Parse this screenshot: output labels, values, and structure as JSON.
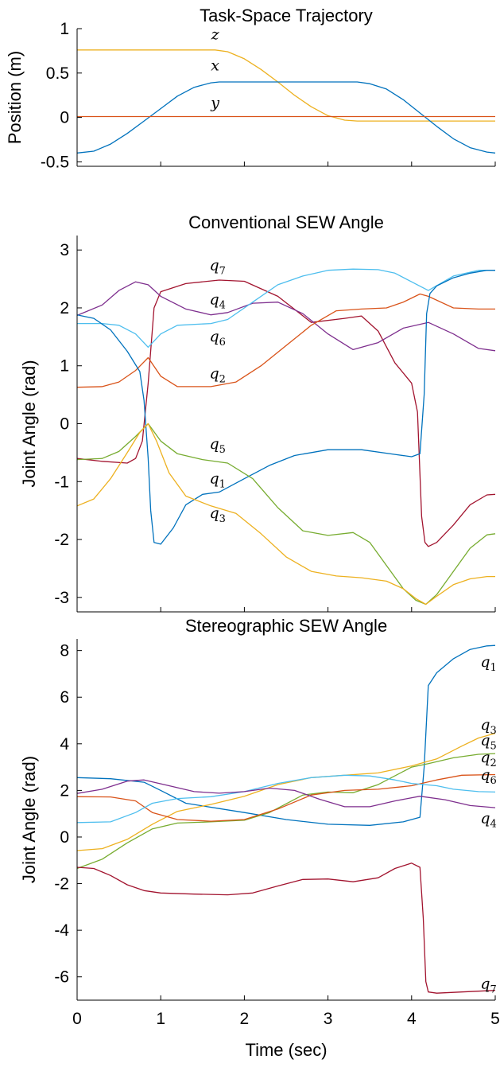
{
  "colors": {
    "c1": "#0072BD",
    "c2": "#D95319",
    "c3": "#EDB120",
    "c4": "#7E2F8E",
    "c5": "#77AC30",
    "c6": "#4DBEEE",
    "c7": "#A2142F"
  },
  "chart_data": [
    {
      "type": "line",
      "title": "Task-Space Trajectory",
      "xlabel": "",
      "ylabel": "Position (m)",
      "xlim": [
        0,
        5
      ],
      "ylim": [
        -0.55,
        1.0
      ],
      "yticks": [
        1,
        0.5,
        0,
        -0.5
      ],
      "ytick_labels": [
        "1",
        "0.5",
        "0",
        "-0.5"
      ],
      "series": [
        {
          "name": "z",
          "color_key": "c3",
          "x": [
            0,
            1.65,
            1.8,
            2.0,
            2.2,
            2.4,
            2.6,
            2.8,
            3.0,
            3.2,
            3.35,
            5
          ],
          "y": [
            0.76,
            0.76,
            0.74,
            0.66,
            0.54,
            0.4,
            0.25,
            0.12,
            0.02,
            -0.03,
            -0.04,
            -0.04
          ]
        },
        {
          "name": "x",
          "color_key": "c1",
          "x": [
            0,
            0.2,
            0.4,
            0.6,
            0.8,
            1.0,
            1.2,
            1.4,
            1.6,
            1.7,
            3.35,
            3.5,
            3.7,
            3.9,
            4.1,
            4.3,
            4.5,
            4.7,
            4.9,
            5
          ],
          "y": [
            -0.4,
            -0.38,
            -0.3,
            -0.18,
            -0.04,
            0.1,
            0.24,
            0.34,
            0.39,
            0.4,
            0.4,
            0.38,
            0.32,
            0.2,
            0.05,
            -0.1,
            -0.24,
            -0.34,
            -0.39,
            -0.4
          ]
        },
        {
          "name": "y",
          "color_key": "c2",
          "x": [
            0,
            5
          ],
          "y": [
            0.01,
            0.01
          ]
        }
      ],
      "annotations": [
        {
          "text": "z",
          "sub": "",
          "x": 1.65,
          "y": 0.88
        },
        {
          "text": "x",
          "sub": "",
          "x": 1.65,
          "y": 0.53
        },
        {
          "text": "y",
          "sub": "",
          "x": 1.65,
          "y": 0.11
        }
      ]
    },
    {
      "type": "line",
      "title": "Conventional SEW Angle",
      "xlabel": "",
      "ylabel": "Joint Angle (rad)",
      "xlim": [
        0,
        5
      ],
      "ylim": [
        -3.25,
        3.25
      ],
      "yticks": [
        3,
        2,
        1,
        0,
        -1,
        -2,
        -3
      ],
      "ytick_labels": [
        "3",
        "2",
        "1",
        "0",
        "-1",
        "-2",
        "-3"
      ],
      "series": [
        {
          "name": "q_7",
          "color_key": "c7",
          "x": [
            0,
            0.3,
            0.6,
            0.7,
            0.78,
            0.85,
            0.92,
            1.0,
            1.3,
            1.7,
            2.0,
            2.4,
            2.8,
            3.2,
            3.4,
            3.6,
            3.8,
            4.0,
            4.07,
            4.12,
            4.16,
            4.2,
            4.3,
            4.5,
            4.7,
            4.9,
            5
          ],
          "y": [
            -0.6,
            -0.65,
            -0.68,
            -0.6,
            -0.3,
            0.7,
            2.0,
            2.28,
            2.42,
            2.48,
            2.46,
            2.2,
            1.75,
            1.82,
            1.86,
            1.6,
            1.05,
            0.7,
            0.2,
            -1.6,
            -2.05,
            -2.12,
            -2.05,
            -1.75,
            -1.4,
            -1.23,
            -1.22
          ]
        },
        {
          "name": "q_4",
          "color_key": "c4",
          "x": [
            0,
            0.3,
            0.5,
            0.7,
            0.85,
            1.0,
            1.3,
            1.6,
            1.8,
            2.1,
            2.4,
            2.7,
            3.0,
            3.3,
            3.6,
            3.9,
            4.2,
            4.5,
            4.8,
            5
          ],
          "y": [
            1.87,
            2.05,
            2.3,
            2.45,
            2.4,
            2.2,
            1.98,
            1.88,
            1.92,
            2.08,
            2.1,
            1.9,
            1.55,
            1.28,
            1.4,
            1.65,
            1.75,
            1.55,
            1.3,
            1.26
          ]
        },
        {
          "name": "q_6",
          "color_key": "c6",
          "x": [
            0,
            0.3,
            0.5,
            0.7,
            0.85,
            1.0,
            1.2,
            1.6,
            1.8,
            2.1,
            2.4,
            2.7,
            3.0,
            3.3,
            3.6,
            3.8,
            4.0,
            4.2,
            4.5,
            4.8,
            5
          ],
          "y": [
            1.73,
            1.73,
            1.7,
            1.55,
            1.32,
            1.55,
            1.7,
            1.73,
            1.8,
            2.1,
            2.4,
            2.55,
            2.65,
            2.67,
            2.66,
            2.6,
            2.45,
            2.3,
            2.55,
            2.65,
            2.65
          ]
        },
        {
          "name": "q_2",
          "color_key": "c2",
          "x": [
            0,
            0.3,
            0.5,
            0.7,
            0.85,
            1.0,
            1.2,
            1.6,
            1.9,
            2.2,
            2.5,
            2.8,
            3.1,
            3.4,
            3.7,
            3.9,
            4.1,
            4.2,
            4.5,
            4.8,
            5
          ],
          "y": [
            0.63,
            0.64,
            0.72,
            0.92,
            1.14,
            0.82,
            0.64,
            0.64,
            0.72,
            1.0,
            1.35,
            1.7,
            1.95,
            1.98,
            2.0,
            2.1,
            2.24,
            2.2,
            2.0,
            1.98,
            1.98
          ]
        },
        {
          "name": "q_1",
          "color_key": "c1",
          "x": [
            0,
            0.2,
            0.4,
            0.6,
            0.75,
            0.8,
            0.85,
            0.88,
            0.92,
            1.0,
            1.15,
            1.3,
            1.5,
            1.7,
            2.0,
            2.3,
            2.6,
            3.0,
            3.4,
            3.8,
            4.0,
            4.1,
            4.15,
            4.18,
            4.22,
            4.3,
            4.5,
            4.7,
            4.9,
            5
          ],
          "y": [
            1.88,
            1.82,
            1.62,
            1.25,
            0.9,
            0.4,
            -0.6,
            -1.5,
            -2.05,
            -2.08,
            -1.8,
            -1.4,
            -1.22,
            -1.18,
            -0.95,
            -0.72,
            -0.55,
            -0.45,
            -0.45,
            -0.53,
            -0.57,
            -0.52,
            0.5,
            1.9,
            2.25,
            2.38,
            2.52,
            2.6,
            2.65,
            2.65
          ]
        },
        {
          "name": "q_5",
          "color_key": "c5",
          "x": [
            0,
            0.3,
            0.5,
            0.7,
            0.85,
            1.0,
            1.2,
            1.5,
            1.8,
            2.1,
            2.4,
            2.7,
            3.0,
            3.3,
            3.5,
            3.7,
            3.9,
            4.05,
            4.17,
            4.3,
            4.5,
            4.7,
            4.9,
            5
          ],
          "y": [
            -0.62,
            -0.6,
            -0.48,
            -0.22,
            0.0,
            -0.3,
            -0.52,
            -0.62,
            -0.68,
            -0.95,
            -1.45,
            -1.85,
            -1.93,
            -1.88,
            -2.05,
            -2.45,
            -2.85,
            -3.05,
            -3.12,
            -2.95,
            -2.55,
            -2.15,
            -1.92,
            -1.9
          ]
        },
        {
          "name": "q_3",
          "color_key": "c3",
          "x": [
            0,
            0.2,
            0.4,
            0.6,
            0.75,
            0.85,
            0.95,
            1.1,
            1.3,
            1.6,
            1.9,
            2.2,
            2.5,
            2.8,
            3.1,
            3.4,
            3.7,
            3.9,
            4.05,
            4.17,
            4.3,
            4.5,
            4.7,
            4.9,
            5
          ],
          "y": [
            -1.42,
            -1.3,
            -0.95,
            -0.5,
            -0.15,
            0.0,
            -0.3,
            -0.85,
            -1.25,
            -1.42,
            -1.55,
            -1.9,
            -2.3,
            -2.55,
            -2.63,
            -2.66,
            -2.72,
            -2.85,
            -3.02,
            -3.12,
            -2.98,
            -2.78,
            -2.68,
            -2.64,
            -2.64
          ]
        }
      ],
      "annotations": [
        {
          "text": "q",
          "sub": "7",
          "x": 1.68,
          "y": 2.65
        },
        {
          "text": "q",
          "sub": "4",
          "x": 1.68,
          "y": 2.06
        },
        {
          "text": "q",
          "sub": "6",
          "x": 1.68,
          "y": 1.42
        },
        {
          "text": "q",
          "sub": "2",
          "x": 1.68,
          "y": 0.78
        },
        {
          "text": "q",
          "sub": "5",
          "x": 1.68,
          "y": -0.43
        },
        {
          "text": "q",
          "sub": "1",
          "x": 1.68,
          "y": -1.03
        },
        {
          "text": "q",
          "sub": "3",
          "x": 1.68,
          "y": -1.63
        }
      ]
    },
    {
      "type": "line",
      "title": "Stereographic SEW Angle",
      "xlabel": "Time (sec)",
      "ylabel": "Joint Angle (rad)",
      "xlim": [
        0,
        5
      ],
      "ylim": [
        -7,
        8.5
      ],
      "yticks": [
        8,
        6,
        4,
        2,
        0,
        -2,
        -4,
        -6
      ],
      "ytick_labels": [
        "8",
        "6",
        "4",
        "2",
        "0",
        "-2",
        "-4",
        "-6"
      ],
      "xticks": [
        0,
        1,
        2,
        3,
        4,
        5
      ],
      "xtick_labels": [
        "0",
        "1",
        "2",
        "3",
        "4",
        "5"
      ],
      "series": [
        {
          "name": "q_1",
          "color_key": "c1",
          "x": [
            0,
            0.4,
            0.8,
            1.0,
            1.3,
            1.7,
            2.0,
            2.5,
            3.0,
            3.5,
            3.9,
            4.1,
            4.15,
            4.2,
            4.3,
            4.5,
            4.7,
            4.9,
            5
          ],
          "y": [
            2.55,
            2.5,
            2.35,
            2.0,
            1.45,
            1.22,
            1.05,
            0.75,
            0.55,
            0.5,
            0.65,
            0.85,
            3.0,
            6.5,
            7.05,
            7.65,
            8.05,
            8.2,
            8.22
          ]
        },
        {
          "name": "q_3",
          "color_key": "c3",
          "x": [
            0,
            0.3,
            0.6,
            0.9,
            1.2,
            1.6,
            2.0,
            2.4,
            2.8,
            3.2,
            3.6,
            4.0,
            4.3,
            4.6,
            4.8,
            5
          ],
          "y": [
            -0.58,
            -0.5,
            -0.1,
            0.55,
            1.1,
            1.4,
            1.75,
            2.25,
            2.55,
            2.65,
            2.75,
            3.05,
            3.35,
            3.9,
            4.25,
            4.45
          ]
        },
        {
          "name": "q_5",
          "color_key": "c5",
          "x": [
            0,
            0.3,
            0.6,
            0.9,
            1.2,
            1.6,
            2.0,
            2.3,
            2.7,
            3.0,
            3.3,
            3.6,
            4.0,
            4.2,
            4.5,
            4.8,
            5
          ],
          "y": [
            -1.35,
            -0.95,
            -0.25,
            0.35,
            0.6,
            0.65,
            0.72,
            1.05,
            1.8,
            1.93,
            1.9,
            2.25,
            3.0,
            3.15,
            3.4,
            3.55,
            3.58
          ]
        },
        {
          "name": "q_2",
          "color_key": "c2",
          "x": [
            0,
            0.4,
            0.7,
            0.9,
            1.2,
            1.6,
            2.0,
            2.4,
            2.8,
            3.2,
            3.6,
            4.0,
            4.3,
            4.6,
            5
          ],
          "y": [
            1.73,
            1.72,
            1.55,
            1.05,
            0.75,
            0.68,
            0.75,
            1.2,
            1.8,
            2.0,
            2.05,
            2.2,
            2.45,
            2.65,
            2.68
          ]
        },
        {
          "name": "q_6",
          "color_key": "c6",
          "x": [
            0,
            0.4,
            0.7,
            0.9,
            1.2,
            1.6,
            2.0,
            2.4,
            2.8,
            3.2,
            3.5,
            3.8,
            4.0,
            4.3,
            4.5,
            4.8,
            5
          ],
          "y": [
            0.62,
            0.65,
            1.05,
            1.45,
            1.65,
            1.73,
            1.95,
            2.3,
            2.55,
            2.65,
            2.62,
            2.45,
            2.3,
            2.2,
            2.05,
            1.95,
            1.93
          ]
        },
        {
          "name": "q_4",
          "color_key": "c4",
          "x": [
            0,
            0.3,
            0.6,
            0.8,
            1.1,
            1.4,
            1.7,
            2.0,
            2.3,
            2.6,
            2.9,
            3.2,
            3.5,
            3.8,
            4.1,
            4.4,
            4.7,
            5
          ],
          "y": [
            1.87,
            2.05,
            2.4,
            2.45,
            2.2,
            1.95,
            1.88,
            1.95,
            2.1,
            2.0,
            1.62,
            1.3,
            1.3,
            1.55,
            1.75,
            1.6,
            1.35,
            1.26
          ]
        },
        {
          "name": "q_7",
          "color_key": "c7",
          "x": [
            0,
            0.2,
            0.4,
            0.6,
            0.8,
            1.0,
            1.4,
            1.8,
            2.1,
            2.4,
            2.7,
            3.0,
            3.3,
            3.6,
            3.8,
            4.0,
            4.1,
            4.14,
            4.17,
            4.2,
            4.3,
            4.6,
            5
          ],
          "y": [
            -1.3,
            -1.35,
            -1.65,
            -2.05,
            -2.3,
            -2.4,
            -2.45,
            -2.48,
            -2.4,
            -2.1,
            -1.82,
            -1.8,
            -1.92,
            -1.75,
            -1.35,
            -1.12,
            -1.3,
            -3.5,
            -6.2,
            -6.65,
            -6.7,
            -6.65,
            -6.58
          ]
        }
      ],
      "annotations": [
        {
          "text": "q",
          "sub": "1",
          "x": 4.92,
          "y": 7.3
        },
        {
          "text": "q",
          "sub": "3",
          "x": 4.92,
          "y": 4.6
        },
        {
          "text": "q",
          "sub": "5",
          "x": 4.92,
          "y": 3.95
        },
        {
          "text": "q",
          "sub": "2",
          "x": 4.92,
          "y": 3.2
        },
        {
          "text": "q",
          "sub": "6",
          "x": 4.92,
          "y": 2.45
        },
        {
          "text": "q",
          "sub": "4",
          "x": 4.92,
          "y": 0.6
        },
        {
          "text": "q",
          "sub": "7",
          "x": 4.92,
          "y": -6.5
        }
      ]
    }
  ]
}
